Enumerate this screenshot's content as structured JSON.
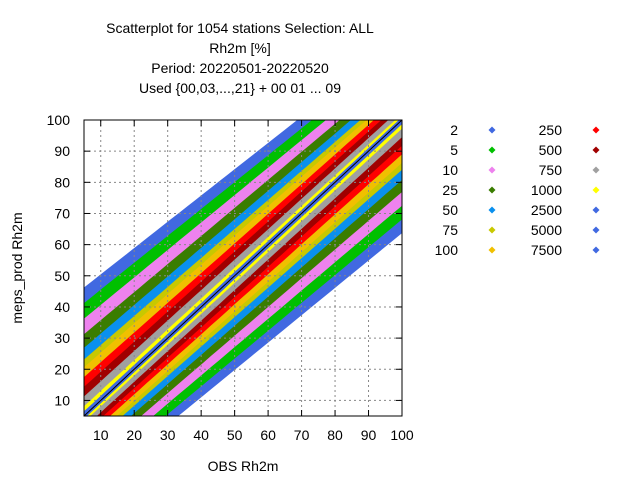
{
  "chart_data": {
    "type": "scatter",
    "title_lines": [
      "Scatterplot for 1054 stations Selection: ALL",
      "Rh2m [%]",
      "Period: 20220501-20220520",
      "Used {00,03,...,21} + 00 01 ... 09"
    ],
    "xlabel": "OBS Rh2m",
    "ylabel": "meps_prod Rh2m",
    "xlim": [
      5,
      100
    ],
    "ylim": [
      5,
      100
    ],
    "xticks": [
      10,
      20,
      30,
      40,
      50,
      60,
      70,
      80,
      90,
      100
    ],
    "yticks": [
      10,
      20,
      30,
      40,
      50,
      60,
      70,
      80,
      90,
      100
    ],
    "grid": true,
    "diagonal_line": true,
    "legend_position": "right",
    "series": [
      {
        "name": "2",
        "color": "#4169e1",
        "halfwidth": 33
      },
      {
        "name": "5",
        "color": "#00c000",
        "halfwidth": 29
      },
      {
        "name": "10",
        "color": "#ee82ee",
        "halfwidth": 25
      },
      {
        "name": "25",
        "color": "#3a7d00",
        "halfwidth": 21
      },
      {
        "name": "50",
        "color": "#0a90ee",
        "halfwidth": 17.5
      },
      {
        "name": "75",
        "color": "#c8c800",
        "halfwidth": 14.5
      },
      {
        "name": "100",
        "color": "#f0c000",
        "halfwidth": 12.5
      },
      {
        "name": "250",
        "color": "#ff0000",
        "halfwidth": 10
      },
      {
        "name": "500",
        "color": "#a00000",
        "halfwidth": 7.5
      },
      {
        "name": "750",
        "color": "#a0a0a0",
        "halfwidth": 5
      },
      {
        "name": "1000",
        "color": "#ffff00",
        "halfwidth": 2.5
      },
      {
        "name": "2500",
        "color": "#4169e1",
        "halfwidth": 1.2
      },
      {
        "name": "5000",
        "color": "#4169e1",
        "halfwidth": 0.6
      },
      {
        "name": "7500",
        "color": "#4169e1",
        "halfwidth": 0.3
      }
    ]
  }
}
